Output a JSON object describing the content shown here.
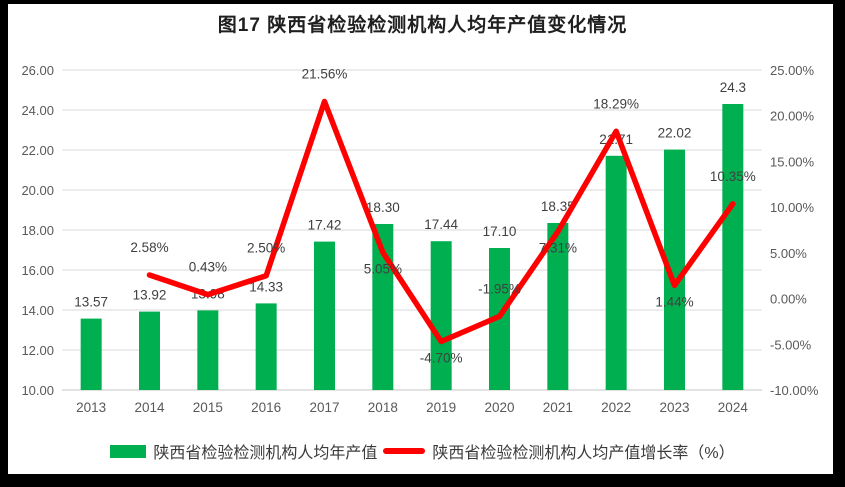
{
  "title": "图17 陕西省检验检测机构人均年产值变化情况",
  "colors": {
    "bar": "#00B050",
    "line": "#FF0000",
    "grid": "#D9D9D9",
    "axis_text": "#595959",
    "data_label": "#404040",
    "frame": "#000000"
  },
  "chart_data": {
    "type": "bar+line combo",
    "title": "图17 陕西省检验检测机构人均年产值变化情况",
    "categories": [
      "2013",
      "2014",
      "2015",
      "2016",
      "2017",
      "2018",
      "2019",
      "2020",
      "2021",
      "2022",
      "2023",
      "2024"
    ],
    "series": [
      {
        "name": "陕西省检验检测机构人均年产值",
        "type": "bar",
        "axis": "left",
        "color": "#00B050",
        "values": [
          13.57,
          13.92,
          13.98,
          14.33,
          17.42,
          18.3,
          17.44,
          17.1,
          18.35,
          21.71,
          22.02,
          24.3
        ],
        "labels": [
          "13.57",
          "13.92",
          "13.98",
          "14.33",
          "17.42",
          "18.30",
          "17.44",
          "17.10",
          "18.35",
          "21.71",
          "22.02",
          "24.3"
        ]
      },
      {
        "name": "陕西省检验检测机构人均产值增长率（%）",
        "type": "line",
        "axis": "right",
        "color": "#FF0000",
        "values": [
          null,
          2.58,
          0.43,
          2.5,
          21.56,
          5.05,
          -4.7,
          -1.95,
          7.31,
          18.29,
          1.44,
          10.35
        ],
        "labels": [
          null,
          "2.58%",
          "0.43%",
          "2.50%",
          "21.56%",
          "5.05%",
          "-4.70%",
          "-1.95%",
          "7.31%",
          "18.29%",
          "1.44%",
          "10.35%"
        ],
        "label_side": [
          null,
          "above",
          "above",
          "above",
          "above",
          "below",
          "below",
          "above",
          "below",
          "above",
          "below",
          "above"
        ]
      }
    ],
    "left_axis": {
      "min": 10,
      "max": 26,
      "step": 2,
      "ticks": [
        "26.00",
        "24.00",
        "22.00",
        "20.00",
        "18.00",
        "16.00",
        "14.00",
        "12.00",
        "10.00"
      ]
    },
    "right_axis": {
      "min": -10,
      "max": 25,
      "step": 5,
      "ticks": [
        "25.00%",
        "20.00%",
        "15.00%",
        "10.00%",
        "5.00%",
        "0.00%",
        "-5.00%",
        "-10.00%"
      ]
    },
    "grid": true,
    "legend_position": "bottom"
  },
  "legend": {
    "items": [
      {
        "label": "陕西省检验检测机构人均年产值",
        "swatch": "bar",
        "color": "#00B050"
      },
      {
        "label": "陕西省检验检测机构人均产值增长率（%）",
        "swatch": "line",
        "color": "#FF0000"
      }
    ]
  }
}
